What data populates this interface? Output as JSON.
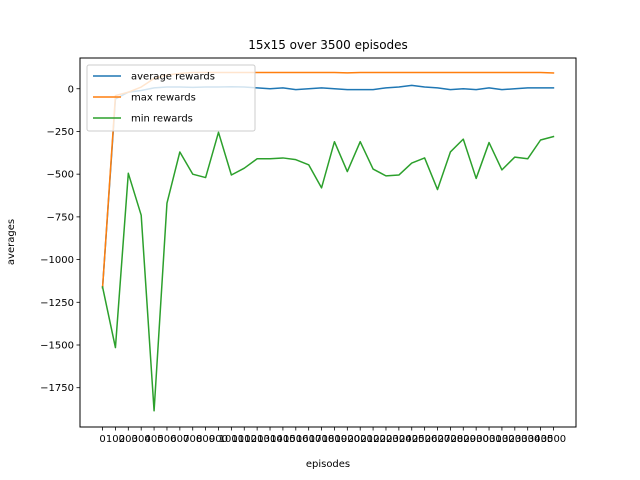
{
  "chart_data": {
    "type": "line",
    "title": "15x15 over 3500 episodes",
    "xlabel": "episodes",
    "ylabel": "averages",
    "x": [
      0,
      100,
      200,
      300,
      400,
      500,
      600,
      700,
      800,
      900,
      1000,
      1100,
      1200,
      1300,
      1400,
      1500,
      1600,
      1700,
      1800,
      1900,
      2000,
      2100,
      2200,
      2300,
      2400,
      2500,
      2600,
      2700,
      2800,
      2900,
      3000,
      3100,
      3200,
      3300,
      3400,
      3500
    ],
    "x_tick_labels": [
      "0",
      "100",
      "200",
      "300",
      "400",
      "500",
      "600",
      "700",
      "800",
      "900",
      "1000",
      "1100",
      "1200",
      "1300",
      "1400",
      "1500",
      "1600",
      "1700",
      "1800",
      "1900",
      "2000",
      "2100",
      "2200",
      "2300",
      "2400",
      "2500",
      "2600",
      "2700",
      "2800",
      "2900",
      "3000",
      "3100",
      "3200",
      "3300",
      "3400",
      "3500"
    ],
    "y_ticks": [
      0,
      -250,
      -500,
      -750,
      -1000,
      -1250,
      -1500,
      -1750
    ],
    "y_tick_labels": [
      "0",
      "−250",
      "−500",
      "−750",
      "−1000",
      "−1250",
      "−1500",
      "−1750"
    ],
    "xlim": [
      -175,
      3675
    ],
    "ylim": [
      -1980,
      180
    ],
    "grid": false,
    "legend_position": "upper-left",
    "series": [
      {
        "name": "average rewards",
        "color": "#1f77b4",
        "values": [
          -1165,
          -60,
          -20,
          -10,
          5,
          10,
          10,
          8,
          10,
          10,
          12,
          10,
          5,
          0,
          5,
          -5,
          0,
          5,
          0,
          -5,
          -5,
          -5,
          5,
          10,
          20,
          10,
          5,
          -5,
          0,
          -5,
          5,
          -5,
          0,
          5,
          5,
          5
        ]
      },
      {
        "name": "max rewards",
        "color": "#ff7f0e",
        "values": [
          -1165,
          -40,
          -20,
          10,
          60,
          80,
          90,
          95,
          95,
          95,
          95,
          95,
          95,
          95,
          95,
          95,
          95,
          95,
          95,
          93,
          95,
          95,
          95,
          95,
          95,
          95,
          95,
          95,
          95,
          95,
          95,
          95,
          95,
          95,
          95,
          92
        ]
      },
      {
        "name": "min rewards",
        "color": "#2ca02c",
        "values": [
          -1160,
          -1515,
          -495,
          -740,
          -1885,
          -670,
          -370,
          -500,
          -520,
          -255,
          -505,
          -465,
          -410,
          -410,
          -405,
          -415,
          -445,
          -580,
          -310,
          -485,
          -310,
          -470,
          -510,
          -505,
          -435,
          -405,
          -590,
          -370,
          -295,
          -525,
          -315,
          -475,
          -400,
          -410,
          -300,
          -280
        ]
      }
    ]
  }
}
